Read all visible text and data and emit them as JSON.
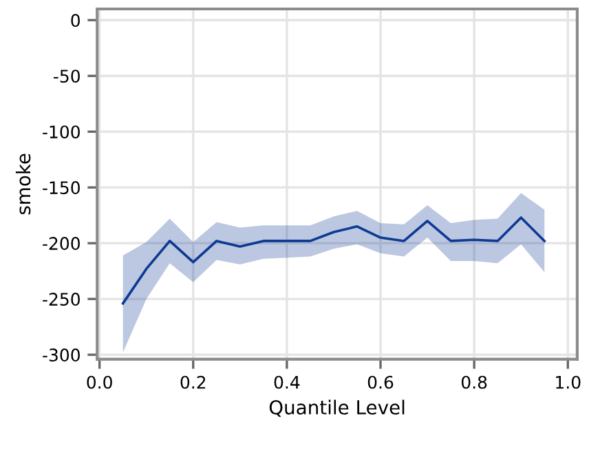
{
  "chart_data": {
    "type": "line",
    "xlabel": "Quantile Level",
    "ylabel": "smoke",
    "x": [
      0.05,
      0.1,
      0.15,
      0.2,
      0.25,
      0.3,
      0.35,
      0.4,
      0.45,
      0.5,
      0.55,
      0.6,
      0.65,
      0.7,
      0.75,
      0.8,
      0.85,
      0.9,
      0.95
    ],
    "series": [
      {
        "color": "#0d3a94",
        "values": [
          -254,
          -223,
          -198,
          -217,
          -198,
          -203,
          -198,
          -198,
          -198,
          -190,
          -185,
          -195,
          -198,
          -180,
          -198,
          -197,
          -198,
          -177,
          -198
        ],
        "upper": [
          -211,
          -199,
          -178,
          -199,
          -181,
          -186,
          -184,
          -184,
          -184,
          -176,
          -171,
          -182,
          -183,
          -166,
          -182,
          -179,
          -178,
          -155,
          -170
        ],
        "lower": [
          -298,
          -250,
          -218,
          -235,
          -215,
          -219,
          -214,
          -213,
          -212,
          -205,
          -201,
          -209,
          -212,
          -195,
          -216,
          -216,
          -218,
          -201,
          -226
        ]
      }
    ],
    "xlim": [
      -0.005,
      1.02
    ],
    "ylim": [
      -304,
      10
    ],
    "xticks": [
      {
        "value": 0,
        "label": "0.0"
      },
      0.2,
      0.4,
      0.6,
      0.8,
      {
        "value": 1,
        "label": "1.0"
      }
    ],
    "yticks": [
      0,
      -50,
      -100,
      -150,
      -200,
      -250,
      -300
    ],
    "grid": true
  }
}
